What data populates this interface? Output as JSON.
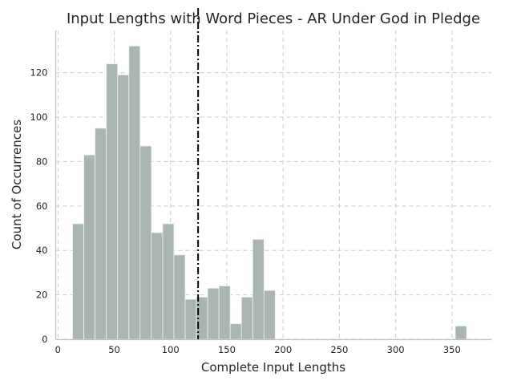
{
  "chart_data": {
    "type": "bar",
    "title": "Input Lengths with Word Pieces - AR Under God in Pledge",
    "xlabel": "Complete Input Lengths",
    "ylabel": "Count of Occurrences",
    "bar_color": "#a8b5b2",
    "reference_line_color": "#000000",
    "grid": true,
    "xlim": [
      -2,
      385
    ],
    "ylim": [
      0,
      139
    ],
    "xticks": [
      0,
      50,
      100,
      150,
      200,
      250,
      300,
      350
    ],
    "yticks": [
      0,
      20,
      40,
      60,
      80,
      100,
      120
    ],
    "bin_edges": [
      13,
      23,
      33,
      43,
      53,
      63,
      73,
      83,
      93,
      103,
      113,
      123,
      133,
      143,
      153,
      163,
      173,
      183,
      193,
      203,
      213,
      223,
      233,
      243,
      253,
      263,
      273,
      283,
      293,
      303,
      313,
      323,
      333,
      343,
      353,
      363
    ],
    "values": [
      52,
      83,
      95,
      124,
      119,
      132,
      87,
      48,
      52,
      38,
      18,
      19,
      23,
      24,
      7,
      19,
      45,
      22,
      0,
      0,
      0,
      0,
      0,
      0,
      0,
      0,
      0,
      0,
      0,
      0,
      0,
      0,
      0,
      0,
      6
    ],
    "reference_line_x": 124.5
  }
}
